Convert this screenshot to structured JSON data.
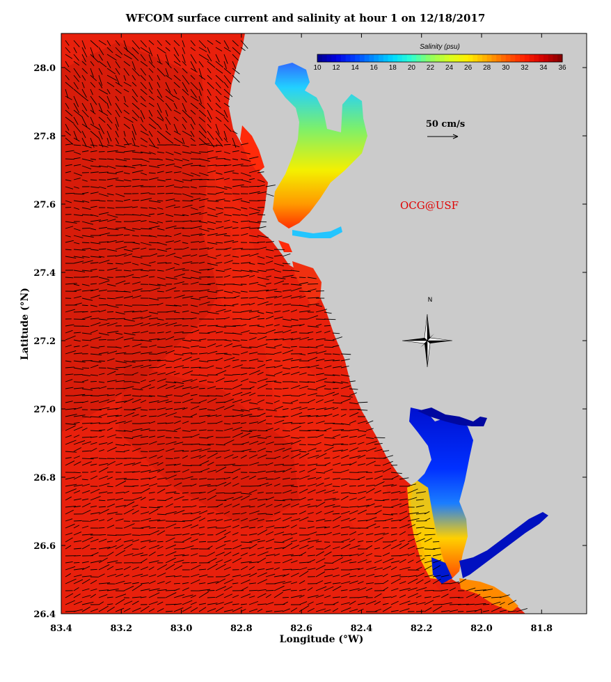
{
  "title": "WFCOM surface current and salinity at hour 1 on 12/18/2017",
  "x_axis": {
    "label": "Longitude (°W)",
    "ticks": [
      "83.4",
      "83.2",
      "83.0",
      "82.8",
      "82.6",
      "82.4",
      "82.2",
      "82.0",
      "81.8"
    ],
    "range": [
      83.4,
      81.65
    ]
  },
  "y_axis": {
    "label": "Latitude (°N)",
    "ticks": [
      "26.4",
      "26.6",
      "26.8",
      "27.0",
      "27.2",
      "27.4",
      "27.6",
      "27.8",
      "28.0"
    ],
    "range": [
      26.4,
      28.1
    ]
  },
  "colorbar": {
    "title": "Salinity (psu)",
    "ticks": [
      "10",
      "12",
      "14",
      "16",
      "18",
      "20",
      "22",
      "24",
      "26",
      "28",
      "30",
      "32",
      "34",
      "36"
    ],
    "range": [
      10,
      36
    ],
    "colors": [
      "#00008b",
      "#0000ff",
      "#0066ff",
      "#00ccff",
      "#33ffcc",
      "#99ff33",
      "#ffff00",
      "#ffaa00",
      "#ff5500",
      "#ff0000",
      "#cc0000",
      "#8b0000"
    ]
  },
  "scale_arrow": {
    "label": "50 cm/s"
  },
  "watermark": "OCG@USF",
  "compass": {
    "north_label": "N"
  },
  "colors": {
    "land": "#cbcbcb",
    "ocean": "#e8200c",
    "ocean_dark": "#c81a0a",
    "credit": "#e00000"
  }
}
